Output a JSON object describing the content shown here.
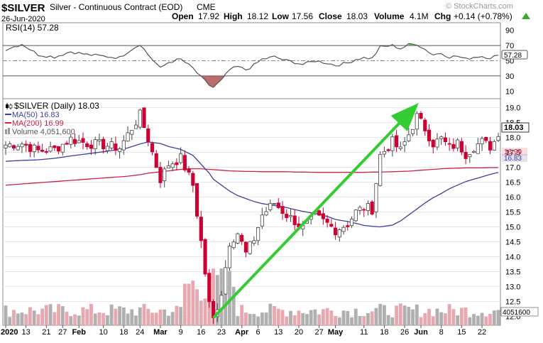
{
  "header": {
    "symbol": "$SILVER",
    "description": "Silver - Continuous Contract (EOD)",
    "exchange": "CME",
    "watermark": "© StockCharts.com",
    "date": "26-Jun-2020",
    "open_label": "Open",
    "open_value": "17.92",
    "high_label": "High",
    "high_value": "18.12",
    "low_label": "Low",
    "low_value": "17.56",
    "close_label": "Close",
    "close_value": "18.03",
    "volume_label": "Volume",
    "volume_value": "4.1M",
    "chg_label": "Chg",
    "chg_value": "+0.14 (+0.78%)"
  },
  "rsi": {
    "label": "RSI(14) 57.28",
    "current": 57.28,
    "current_label": "57.28",
    "ticks": [
      "90",
      "70",
      "50",
      "30",
      "10"
    ]
  },
  "legend": {
    "main": "$SILVER (Daily) 18.03",
    "ma50": "MA(50) 16.83",
    "ma200": "MA(200) 16.99",
    "volume": "Volume 4,051,600"
  },
  "price_axis": {
    "ticks": [
      "19.0",
      "18.5",
      "18.0",
      "17.5",
      "17.0",
      "16.5",
      "16.0",
      "15.5",
      "15.0",
      "14.5",
      "14.0",
      "13.5",
      "13.0",
      "12.5",
      "12.0"
    ],
    "last_price_label": "18.03",
    "ma200_label": "16.99",
    "ma50_label": "16.83",
    "volume_label": "4051600"
  },
  "x_axis": {
    "labels": [
      {
        "text": "2020",
        "bold": true,
        "idx": 0
      },
      {
        "text": "13",
        "bold": false,
        "idx": 5
      },
      {
        "text": "21",
        "bold": false,
        "idx": 10
      },
      {
        "text": "27",
        "bold": false,
        "idx": 14
      },
      {
        "text": "Feb",
        "bold": true,
        "idx": 18
      },
      {
        "text": "10",
        "bold": false,
        "idx": 24
      },
      {
        "text": "18",
        "bold": false,
        "idx": 29
      },
      {
        "text": "24",
        "bold": false,
        "idx": 33
      },
      {
        "text": "Mar",
        "bold": true,
        "idx": 38
      },
      {
        "text": "9",
        "bold": false,
        "idx": 43
      },
      {
        "text": "16",
        "bold": false,
        "idx": 48
      },
      {
        "text": "23",
        "bold": false,
        "idx": 53
      },
      {
        "text": "Apr",
        "bold": true,
        "idx": 58
      },
      {
        "text": "6",
        "bold": false,
        "idx": 62
      },
      {
        "text": "13",
        "bold": false,
        "idx": 67
      },
      {
        "text": "20",
        "bold": false,
        "idx": 72
      },
      {
        "text": "27",
        "bold": false,
        "idx": 77
      },
      {
        "text": "May",
        "bold": true,
        "idx": 81
      },
      {
        "text": "11",
        "bold": false,
        "idx": 88
      },
      {
        "text": "18",
        "bold": false,
        "idx": 93
      },
      {
        "text": "26",
        "bold": false,
        "idx": 98
      },
      {
        "text": "Jun",
        "bold": true,
        "idx": 102
      },
      {
        "text": "8",
        "bold": false,
        "idx": 107
      },
      {
        "text": "15",
        "bold": false,
        "idx": 112
      },
      {
        "text": "22",
        "bold": false,
        "idx": 117
      }
    ]
  },
  "colors": {
    "up": "#666666",
    "down": "#cc0033",
    "ma50": "#3b3f9e",
    "ma200": "#cc2244",
    "rsi_line": "#555555",
    "rsi_fill_high": "#55aa55",
    "rsi_fill_low": "#b05555",
    "trend_arrow": "#33cc33",
    "volume_up": "#b0b0b0",
    "volume_down": "#e8a8b0",
    "last_price_bg": "#ffffff"
  },
  "chart_data": {
    "type": "candlestick",
    "title": "$SILVER Silver - Continuous Contract (EOD) CME, Daily",
    "ylim": [
      11.7,
      19.3
    ],
    "rsi_ylim": [
      0,
      100
    ],
    "rsi_levels": [
      70,
      50,
      30
    ],
    "bars": 122,
    "anchors": [
      {
        "idx": 0,
        "close": 17.75,
        "ma50": 17.2,
        "ma200": 16.4,
        "rsi": 65
      },
      {
        "idx": 4,
        "close": 17.8,
        "ma50": 17.23,
        "ma200": 16.44,
        "rsi": 72
      },
      {
        "idx": 8,
        "close": 17.55,
        "ma50": 17.25,
        "ma200": 16.48,
        "rsi": 58
      },
      {
        "idx": 12,
        "close": 17.6,
        "ma50": 17.3,
        "ma200": 16.52,
        "rsi": 55
      },
      {
        "idx": 16,
        "close": 17.95,
        "ma50": 17.38,
        "ma200": 16.56,
        "rsi": 62
      },
      {
        "idx": 20,
        "close": 17.8,
        "ma50": 17.45,
        "ma200": 16.6,
        "rsi": 58
      },
      {
        "idx": 24,
        "close": 17.75,
        "ma50": 17.52,
        "ma200": 16.64,
        "rsi": 56
      },
      {
        "idx": 28,
        "close": 17.65,
        "ma50": 17.6,
        "ma200": 16.68,
        "rsi": 54
      },
      {
        "idx": 30,
        "close": 18.1,
        "ma50": 17.65,
        "ma200": 16.7,
        "rsi": 62
      },
      {
        "idx": 33,
        "close": 18.75,
        "ma50": 17.78,
        "ma200": 16.75,
        "rsi": 72
      },
      {
        "idx": 35,
        "close": 17.95,
        "ma50": 17.85,
        "ma200": 16.8,
        "rsi": 58
      },
      {
        "idx": 38,
        "close": 16.6,
        "ma50": 17.8,
        "ma200": 16.85,
        "rsi": 40
      },
      {
        "idx": 40,
        "close": 17.1,
        "ma50": 17.7,
        "ma200": 16.88,
        "rsi": 48
      },
      {
        "idx": 43,
        "close": 17.3,
        "ma50": 17.6,
        "ma200": 16.93,
        "rsi": 52
      },
      {
        "idx": 46,
        "close": 16.4,
        "ma50": 17.4,
        "ma200": 16.95,
        "rsi": 40
      },
      {
        "idx": 48,
        "close": 14.5,
        "ma50": 17.1,
        "ma200": 16.95,
        "rsi": 28
      },
      {
        "idx": 50,
        "close": 12.4,
        "ma50": 16.8,
        "ma200": 16.93,
        "rsi": 18
      },
      {
        "idx": 51,
        "close": 11.9,
        "ma50": 16.6,
        "ma200": 16.92,
        "rsi": 15
      },
      {
        "idx": 53,
        "close": 12.8,
        "ma50": 16.4,
        "ma200": 16.9,
        "rsi": 24
      },
      {
        "idx": 55,
        "close": 14.5,
        "ma50": 16.2,
        "ma200": 16.88,
        "rsi": 38
      },
      {
        "idx": 57,
        "close": 14.8,
        "ma50": 16.05,
        "ma200": 16.87,
        "rsi": 42
      },
      {
        "idx": 59,
        "close": 14.1,
        "ma50": 15.95,
        "ma200": 16.86,
        "rsi": 38
      },
      {
        "idx": 61,
        "close": 14.6,
        "ma50": 15.85,
        "ma200": 16.86,
        "rsi": 44
      },
      {
        "idx": 63,
        "close": 15.4,
        "ma50": 15.78,
        "ma200": 16.85,
        "rsi": 52
      },
      {
        "idx": 66,
        "close": 15.8,
        "ma50": 15.72,
        "ma200": 16.85,
        "rsi": 55
      },
      {
        "idx": 69,
        "close": 15.4,
        "ma50": 15.65,
        "ma200": 16.85,
        "rsi": 50
      },
      {
        "idx": 71,
        "close": 15.2,
        "ma50": 15.58,
        "ma200": 16.84,
        "rsi": 48
      },
      {
        "idx": 73,
        "close": 14.95,
        "ma50": 15.52,
        "ma200": 16.84,
        "rsi": 45
      },
      {
        "idx": 76,
        "close": 15.35,
        "ma50": 15.45,
        "ma200": 16.83,
        "rsi": 50
      },
      {
        "idx": 79,
        "close": 15.1,
        "ma50": 15.35,
        "ma200": 16.83,
        "rsi": 47
      },
      {
        "idx": 81,
        "close": 14.9,
        "ma50": 15.25,
        "ma200": 16.83,
        "rsi": 44
      },
      {
        "idx": 84,
        "close": 15.1,
        "ma50": 15.18,
        "ma200": 16.83,
        "rsi": 47
      },
      {
        "idx": 86,
        "close": 15.5,
        "ma50": 15.12,
        "ma200": 16.83,
        "rsi": 52
      },
      {
        "idx": 88,
        "close": 15.65,
        "ma50": 15.05,
        "ma200": 16.83,
        "rsi": 54
      },
      {
        "idx": 90,
        "close": 15.6,
        "ma50": 15.02,
        "ma200": 16.84,
        "rsi": 53
      },
      {
        "idx": 92,
        "close": 17.4,
        "ma50": 15.0,
        "ma200": 16.84,
        "rsi": 68
      },
      {
        "idx": 95,
        "close": 17.85,
        "ma50": 15.06,
        "ma200": 16.85,
        "rsi": 70
      },
      {
        "idx": 97,
        "close": 17.55,
        "ma50": 15.2,
        "ma200": 16.86,
        "rsi": 66
      },
      {
        "idx": 99,
        "close": 18.1,
        "ma50": 15.4,
        "ma200": 16.87,
        "rsi": 71
      },
      {
        "idx": 101,
        "close": 18.7,
        "ma50": 15.6,
        "ma200": 16.89,
        "rsi": 72
      },
      {
        "idx": 103,
        "close": 18.3,
        "ma50": 15.8,
        "ma200": 16.91,
        "rsi": 65
      },
      {
        "idx": 105,
        "close": 17.8,
        "ma50": 15.98,
        "ma200": 16.93,
        "rsi": 58
      },
      {
        "idx": 107,
        "close": 17.95,
        "ma50": 16.12,
        "ma200": 16.95,
        "rsi": 60
      },
      {
        "idx": 109,
        "close": 17.65,
        "ma50": 16.28,
        "ma200": 16.96,
        "rsi": 55
      },
      {
        "idx": 111,
        "close": 17.8,
        "ma50": 16.4,
        "ma200": 16.97,
        "rsi": 56
      },
      {
        "idx": 113,
        "close": 17.45,
        "ma50": 16.52,
        "ma200": 16.98,
        "rsi": 52
      },
      {
        "idx": 115,
        "close": 17.7,
        "ma50": 16.6,
        "ma200": 16.98,
        "rsi": 55
      },
      {
        "idx": 117,
        "close": 17.85,
        "ma50": 16.68,
        "ma200": 16.98,
        "rsi": 56
      },
      {
        "idx": 119,
        "close": 17.7,
        "ma50": 16.76,
        "ma200": 16.99,
        "rsi": 54
      },
      {
        "idx": 121,
        "close": 18.03,
        "ma50": 16.83,
        "ma200": 16.99,
        "rsi": 57.28
      }
    ],
    "trend_arrow": {
      "from_idx": 51,
      "from_price": 11.95,
      "to_idx": 100,
      "to_price": 18.95
    }
  }
}
